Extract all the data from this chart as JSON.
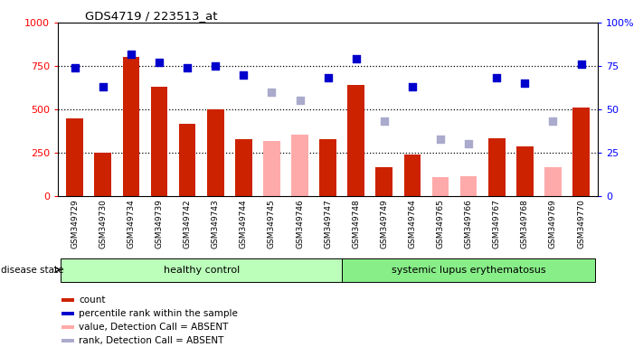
{
  "title": "GDS4719 / 223513_at",
  "samples": [
    "GSM349729",
    "GSM349730",
    "GSM349734",
    "GSM349739",
    "GSM349742",
    "GSM349743",
    "GSM349744",
    "GSM349745",
    "GSM349746",
    "GSM349747",
    "GSM349748",
    "GSM349749",
    "GSM349764",
    "GSM349765",
    "GSM349766",
    "GSM349767",
    "GSM349768",
    "GSM349769",
    "GSM349770"
  ],
  "count_values": [
    450,
    250,
    800,
    630,
    415,
    500,
    330,
    null,
    null,
    330,
    640,
    165,
    240,
    null,
    null,
    335,
    285,
    null,
    510
  ],
  "count_absent": [
    null,
    null,
    null,
    null,
    null,
    null,
    null,
    315,
    355,
    null,
    null,
    null,
    null,
    110,
    115,
    null,
    null,
    165,
    null
  ],
  "percentile_values": [
    74,
    63,
    82,
    77,
    74,
    75,
    70,
    null,
    null,
    68,
    79,
    null,
    63,
    null,
    null,
    68,
    65,
    null,
    76
  ],
  "percentile_absent": [
    null,
    null,
    null,
    null,
    null,
    null,
    null,
    60,
    55,
    null,
    null,
    43,
    null,
    33,
    30,
    null,
    null,
    43,
    null
  ],
  "healthy_control_count": 10,
  "lupus_count": 9,
  "ylim_left": [
    0,
    1000
  ],
  "ylim_right": [
    0,
    100
  ],
  "bar_color_red": "#cc2200",
  "bar_color_pink": "#ffaaaa",
  "dot_color_blue": "#0000cc",
  "dot_color_lightblue": "#aaaacc",
  "healthy_bg": "#bbffbb",
  "lupus_bg": "#88ee88",
  "xlabel_area_bg": "#cccccc",
  "dotted_line_color": "black",
  "legend_items": [
    {
      "color": "#cc2200",
      "label": "count"
    },
    {
      "color": "#0000cc",
      "label": "percentile rank within the sample"
    },
    {
      "color": "#ffaaaa",
      "label": "value, Detection Call = ABSENT"
    },
    {
      "color": "#aaaacc",
      "label": "rank, Detection Call = ABSENT"
    }
  ]
}
